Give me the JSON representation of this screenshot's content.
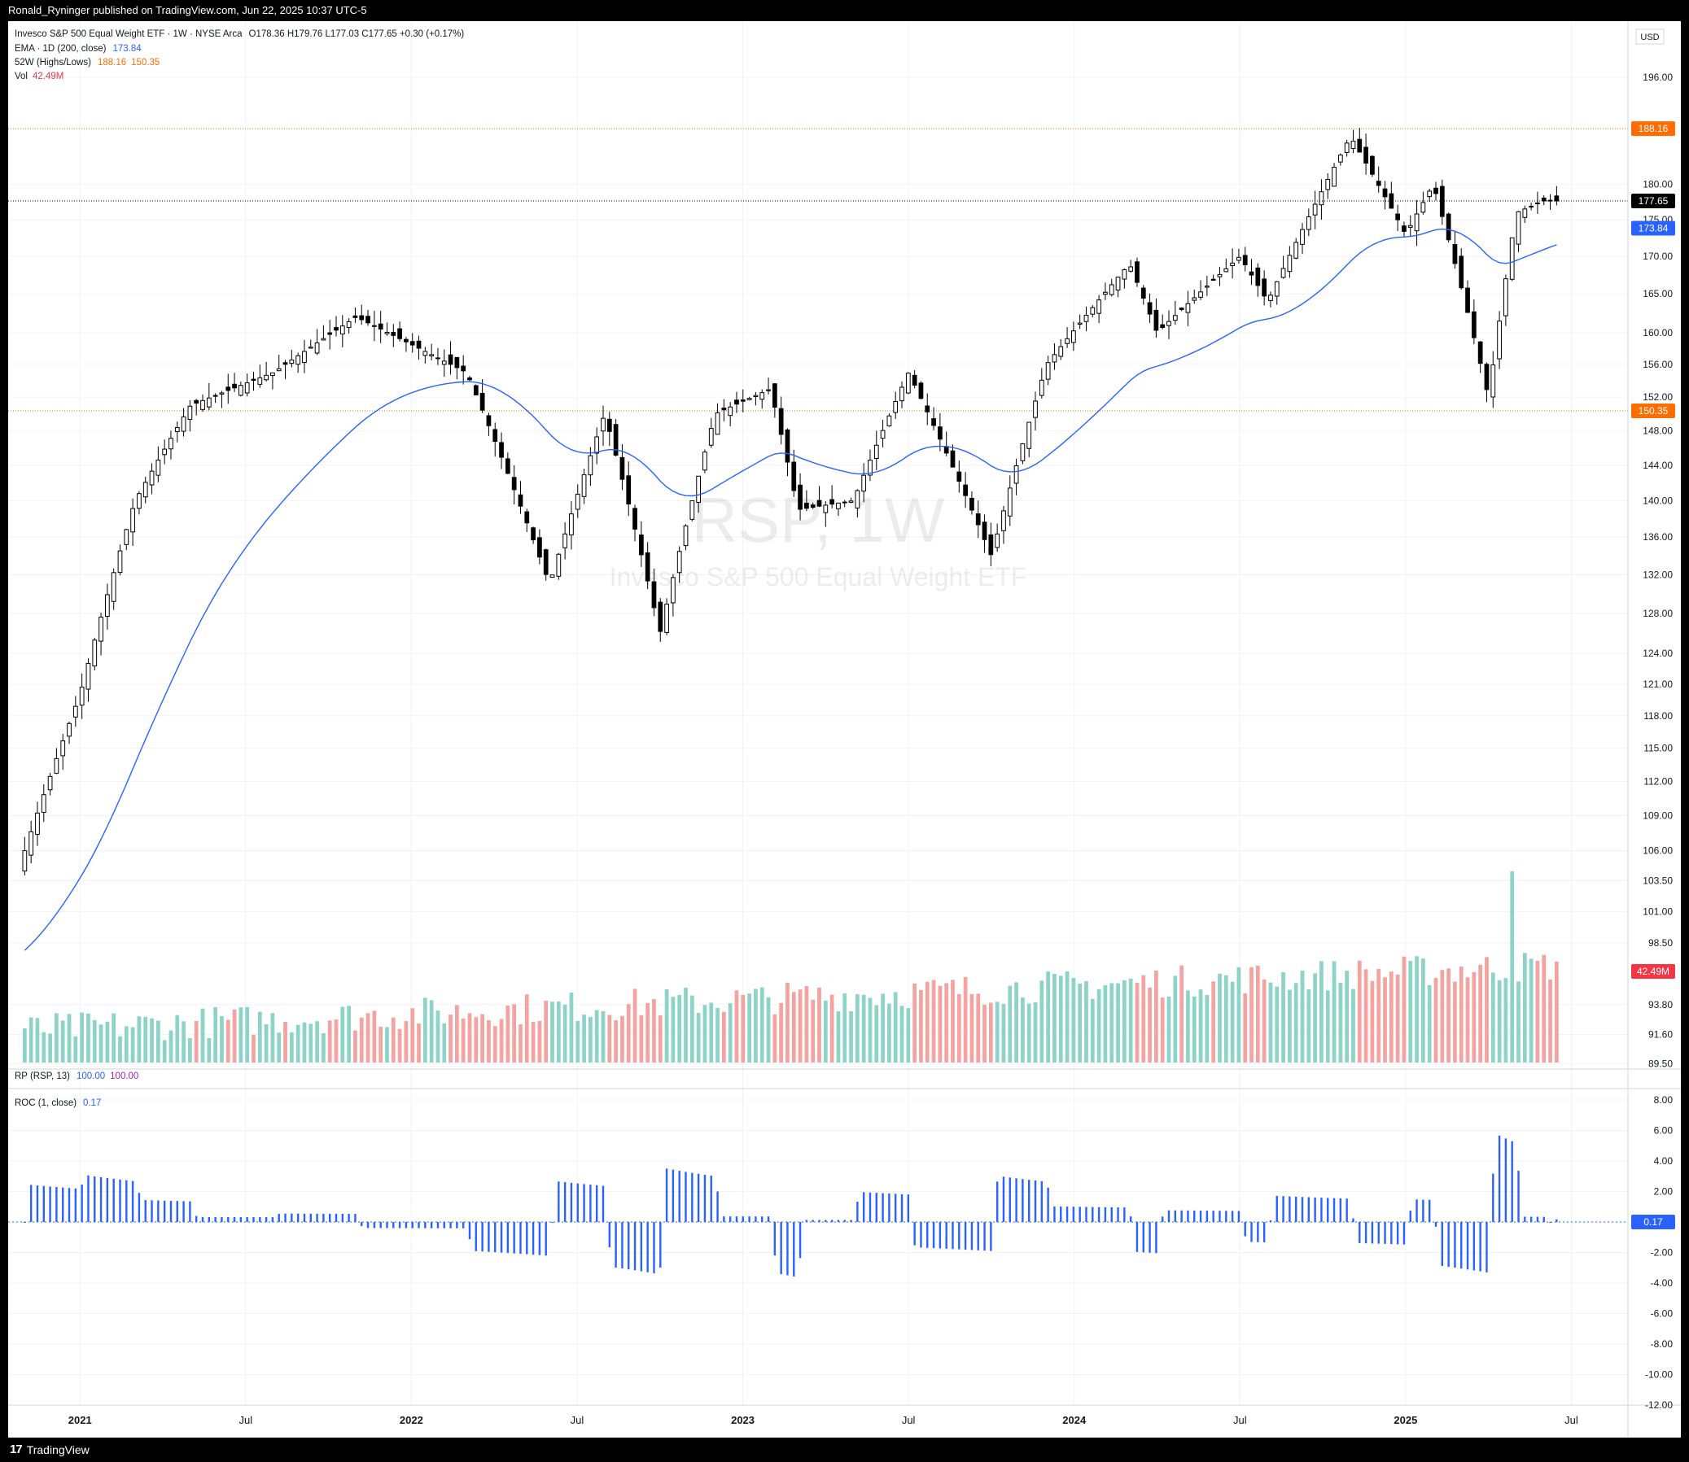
{
  "header": {
    "published_by": "Ronald_Ryninger published on TradingView.com, Jun 22, 2025 10:37 UTC-5"
  },
  "legend": {
    "symbol_line": "Invesco S&P 500 Equal Weight ETF · 1W · NYSE Arca",
    "ohlc": "O178.36  H179.76  L177.03  C177.65  +0.30 (+0.17%)",
    "ema_label": "EMA · 1D (200, close)",
    "ema_value": "173.84",
    "hl_label": "52W (Highs/Lows)",
    "hl_high": "188.16",
    "hl_low": "150.35",
    "vol_label": "Vol",
    "vol_value": "42.49M",
    "rp_label": "RP (RSP, 13)",
    "rp_value1": "100.00",
    "rp_value2": "100.00",
    "roc_label": "ROC (1, close)",
    "roc_value": "0.17",
    "currency": "USD"
  },
  "watermark": {
    "ticker": "RSP, 1W",
    "name": "Invesco S&P 500 Equal Weight ETF"
  },
  "price_badges": {
    "high52": "188.16",
    "last": "177.65",
    "ema": "173.84",
    "low52": "150.35",
    "vol": "42.49M",
    "roc": "0.17"
  },
  "footer": {
    "brand": "TradingView"
  },
  "colors": {
    "up_candle": "#ffffff",
    "down_candle": "#000000",
    "ema_line": "#2962ff",
    "hl_line": "#ff6d00",
    "vol_up": "#8dd3c7",
    "vol_down": "#f4a3a0",
    "roc_bar": "#2962ff"
  },
  "chart_data": [
    {
      "type": "candlestick",
      "title": "Invesco S&P 500 Equal Weight ETF · 1W · NYSE Arca",
      "scale": "log",
      "ylim": [
        89.0,
        201.0
      ],
      "y_ticks": [
        "196.00",
        "180.00",
        "175.00",
        "170.00",
        "165.00",
        "160.00",
        "156.00",
        "152.00",
        "148.00",
        "144.00",
        "140.00",
        "136.00",
        "132.00",
        "128.00",
        "124.00",
        "121.00",
        "118.00",
        "115.00",
        "112.00",
        "109.00",
        "106.00",
        "103.50",
        "101.00",
        "98.50",
        "93.80",
        "91.60",
        "89.50"
      ],
      "x_ticks": [
        "2021",
        "Jul",
        "2022",
        "Jul",
        "2023",
        "Jul",
        "2024",
        "Jul",
        "2025",
        "Jul"
      ],
      "key_points": [
        [
          "2020-11",
          106.0
        ],
        [
          "2021-01",
          120.0
        ],
        [
          "2021-03",
          140.0
        ],
        [
          "2021-05",
          151.0
        ],
        [
          "2021-08",
          155.0
        ],
        [
          "2021-11",
          162.0
        ],
        [
          "2022-03",
          155.0
        ],
        [
          "2022-06",
          131.0
        ],
        [
          "2022-08",
          150.0
        ],
        [
          "2022-10",
          126.0
        ],
        [
          "2022-12",
          150.0
        ],
        [
          "2023-02",
          153.0
        ],
        [
          "2023-03",
          139.0
        ],
        [
          "2023-05",
          140.0
        ],
        [
          "2023-07",
          155.0
        ],
        [
          "2023-10",
          134.0
        ],
        [
          "2023-12",
          156.0
        ],
        [
          "2024-03",
          169.0
        ],
        [
          "2024-04",
          160.0
        ],
        [
          "2024-07",
          170.0
        ],
        [
          "2024-08",
          164.0
        ],
        [
          "2024-11",
          187.0
        ],
        [
          "2025-01",
          173.0
        ],
        [
          "2025-02",
          180.0
        ],
        [
          "2025-04",
          152.0
        ],
        [
          "2025-05",
          176.0
        ],
        [
          "2025-06",
          177.65
        ]
      ],
      "last": {
        "open": 178.36,
        "high": 179.76,
        "low": 177.03,
        "close": 177.65,
        "change": "+0.30 (+0.17%)"
      },
      "ema200_end": 173.84,
      "week52_high": 188.16,
      "week52_low": 150.35
    },
    {
      "type": "bar",
      "title": "Vol",
      "last_value": "42.49M"
    },
    {
      "type": "bar",
      "title": "ROC (1, close)",
      "ylim": [
        -12.0,
        8.0
      ],
      "y_ticks": [
        "8.00",
        "6.00",
        "4.00",
        "2.00",
        "0.00",
        "-2.00",
        "-4.00",
        "-6.00",
        "-8.00",
        "-10.00",
        "-12.00"
      ],
      "last_value": 0.17
    }
  ]
}
